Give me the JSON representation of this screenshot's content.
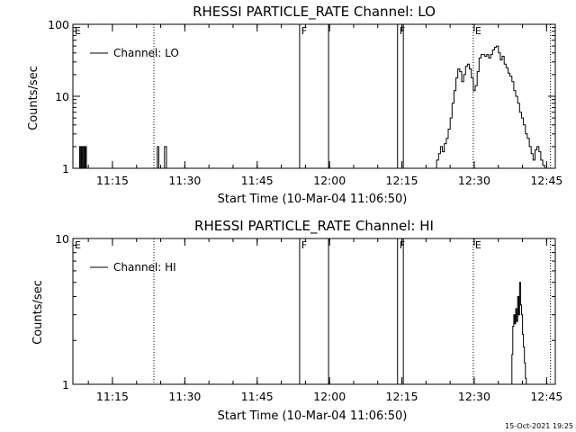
{
  "timestamp": "15-Oct-2021 19:25",
  "chart_data": [
    {
      "type": "line",
      "title": "RHESSI PARTICLE_RATE Channel: LO",
      "xlabel": "Start Time (10-Mar-04 11:06:50)",
      "ylabel": "Counts/sec",
      "yscale": "log",
      "ylim": [
        1,
        100
      ],
      "xlim_minutes": [
        0,
        100
      ],
      "x_ticks": [
        {
          "label": "11:15",
          "minutes": 8.2
        },
        {
          "label": "11:30",
          "minutes": 23.2
        },
        {
          "label": "11:45",
          "minutes": 38.2
        },
        {
          "label": "12:00",
          "minutes": 53.2
        },
        {
          "label": "12:15",
          "minutes": 68.2
        },
        {
          "label": "12:30",
          "minutes": 83.2
        },
        {
          "label": "12:45",
          "minutes": 98.2
        }
      ],
      "y_ticks": [
        {
          "label": "1",
          "value": 1
        },
        {
          "label": "10",
          "value": 10
        },
        {
          "label": "100",
          "value": 100
        }
      ],
      "legend": {
        "label": "Channel: LO",
        "position": "top-left"
      },
      "markers": [
        {
          "label": "E",
          "minutes": 0,
          "style": "dotted"
        },
        {
          "label": "",
          "minutes": 16.8,
          "style": "dotted"
        },
        {
          "label": "F",
          "minutes": 47.0,
          "style": "solid"
        },
        {
          "label": "",
          "minutes": 53.0,
          "style": "solid"
        },
        {
          "label": "F",
          "minutes": 67.3,
          "style": "solid"
        },
        {
          "label": "",
          "minutes": 68.5,
          "style": "solid"
        },
        {
          "label": "E",
          "minutes": 83.0,
          "style": "dotted"
        },
        {
          "label": "",
          "minutes": 99.0,
          "style": "dotted"
        }
      ],
      "series": [
        {
          "x": [
            1.2,
            1.4,
            1.6,
            1.8,
            2.0,
            2.2,
            2.4,
            2.6,
            2.8,
            3.0,
            17.2,
            17.5,
            17.8,
            18.1,
            18.6,
            19.0,
            19.4,
            75.0,
            75.4,
            75.8,
            76.2,
            76.6,
            77.0,
            77.4,
            77.8,
            78.2,
            78.6,
            79.0,
            79.4,
            79.8,
            80.2,
            80.6,
            81.0,
            81.4,
            81.8,
            82.2,
            82.6,
            83.0,
            83.4,
            83.8,
            84.2,
            84.6,
            85.0,
            85.4,
            85.8,
            86.2,
            86.6,
            87.0,
            87.4,
            87.8,
            88.2,
            88.6,
            89.0,
            89.4,
            89.8,
            90.2,
            90.6,
            91.0,
            91.4,
            91.8,
            92.2,
            92.6,
            93.0,
            93.4,
            93.8,
            94.2,
            94.6,
            95.0,
            95.4,
            95.8,
            96.2,
            96.6,
            97.0,
            97.4,
            97.8,
            98.2
          ],
          "y": [
            1.0,
            2.0,
            1.0,
            2.0,
            1.0,
            2.0,
            1.0,
            2.0,
            1.0,
            1.0,
            1.0,
            2.0,
            1.0,
            1.0,
            1.0,
            2.0,
            1.0,
            1.0,
            1.3,
            1.6,
            2.0,
            1.7,
            2.2,
            2.6,
            3.5,
            5.0,
            8.0,
            12.0,
            18.0,
            24.0,
            22.0,
            16.0,
            20.0,
            26.0,
            28.0,
            24.0,
            18.0,
            12.0,
            14.0,
            22.0,
            34.0,
            38.0,
            38.0,
            36.0,
            38.0,
            34.0,
            38.0,
            44.0,
            48.0,
            50.0,
            40.0,
            32.0,
            36.0,
            28.0,
            25.0,
            21.0,
            19.0,
            16.0,
            12.0,
            10.0,
            8.0,
            6.0,
            5.0,
            4.0,
            3.0,
            2.6,
            2.0,
            1.6,
            1.3,
            1.8,
            2.0,
            1.7,
            1.3,
            1.1,
            1.0,
            1.0
          ]
        }
      ]
    },
    {
      "type": "line",
      "title": "RHESSI PARTICLE_RATE Channel: HI",
      "xlabel": "Start Time (10-Mar-04 11:06:50)",
      "ylabel": "Counts/sec",
      "yscale": "log",
      "ylim": [
        1,
        10
      ],
      "xlim_minutes": [
        0,
        100
      ],
      "x_ticks": [
        {
          "label": "11:15",
          "minutes": 8.2
        },
        {
          "label": "11:30",
          "minutes": 23.2
        },
        {
          "label": "11:45",
          "minutes": 38.2
        },
        {
          "label": "12:00",
          "minutes": 53.2
        },
        {
          "label": "12:15",
          "minutes": 68.2
        },
        {
          "label": "12:30",
          "minutes": 83.2
        },
        {
          "label": "12:45",
          "minutes": 98.2
        }
      ],
      "y_ticks": [
        {
          "label": "1",
          "value": 1
        },
        {
          "label": "10",
          "value": 10
        }
      ],
      "legend": {
        "label": "Channel: HI",
        "position": "top-left"
      },
      "markers": [
        {
          "label": "E",
          "minutes": 0,
          "style": "dotted"
        },
        {
          "label": "",
          "minutes": 16.8,
          "style": "dotted"
        },
        {
          "label": "F",
          "minutes": 47.0,
          "style": "solid"
        },
        {
          "label": "",
          "minutes": 53.0,
          "style": "solid"
        },
        {
          "label": "F",
          "minutes": 67.3,
          "style": "solid"
        },
        {
          "label": "",
          "minutes": 68.5,
          "style": "solid"
        },
        {
          "label": "E",
          "minutes": 83.0,
          "style": "dotted"
        },
        {
          "label": "",
          "minutes": 99.0,
          "style": "dotted"
        }
      ],
      "series": [
        {
          "x": [
            90.6,
            91.0,
            91.2,
            91.4,
            91.6,
            91.8,
            92.0,
            92.2,
            92.4,
            92.6,
            92.8,
            93.0,
            93.2,
            93.4,
            93.6,
            93.8,
            94.0
          ],
          "y": [
            1.0,
            1.6,
            2.5,
            3.0,
            2.6,
            3.3,
            2.7,
            4.0,
            3.0,
            5.0,
            3.5,
            3.0,
            2.2,
            1.8,
            1.4,
            1.1,
            1.0
          ]
        }
      ]
    }
  ]
}
